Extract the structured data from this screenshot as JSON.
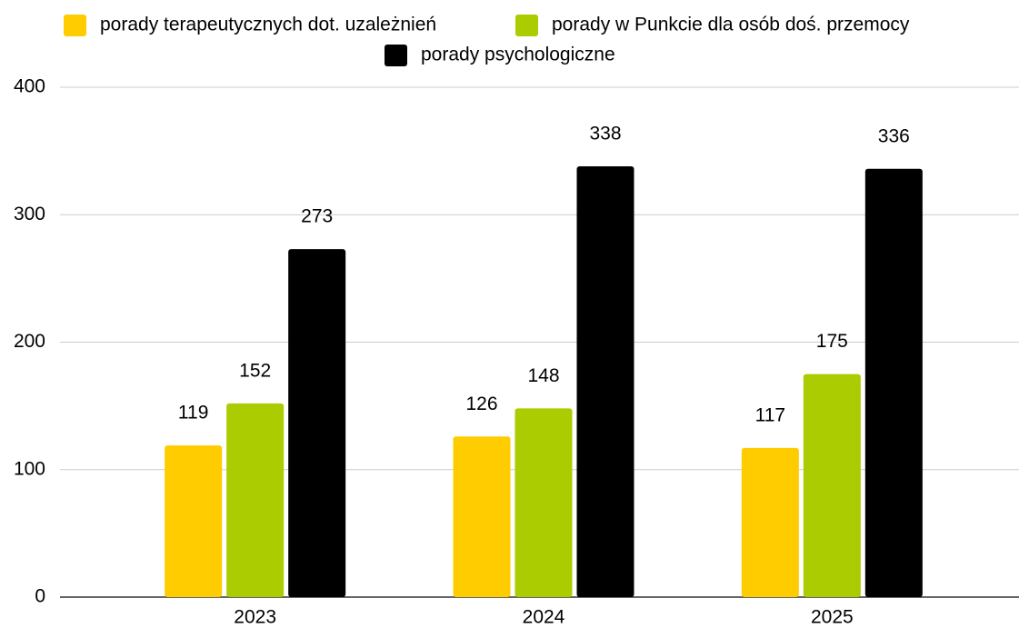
{
  "chart_data": {
    "type": "bar",
    "categories": [
      "2023",
      "2024",
      "2025"
    ],
    "series": [
      {
        "name": "porady terapeutycznych dot. uzależnień",
        "color": "#ffcc00",
        "values": [
          119,
          126,
          117
        ]
      },
      {
        "name": "porady w Punkcie dla osób doś. przemocy",
        "color": "#aacc00",
        "values": [
          152,
          148,
          175
        ]
      },
      {
        "name": "porady psychologiczne",
        "color": "#000000",
        "values": [
          273,
          338,
          336
        ]
      }
    ],
    "ylim": [
      0,
      400
    ],
    "yticks": [
      0,
      100,
      200,
      300,
      400
    ],
    "grid": true,
    "legend": "top"
  }
}
